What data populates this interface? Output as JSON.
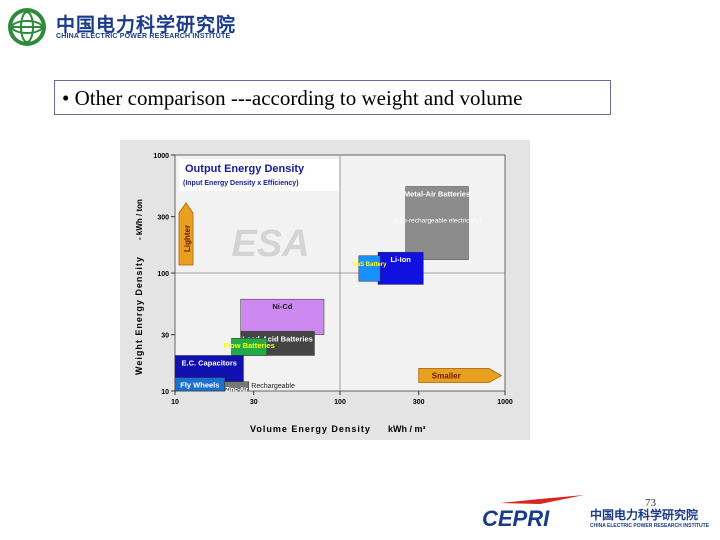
{
  "header": {
    "org_name_cn": "中国电力科学研究院",
    "org_name_en": "CHINA ELECTRIC POWER RESEARCH INSTITUTE"
  },
  "slide": {
    "title": "• Other comparison ---according to weight and volume",
    "page_number": "73"
  },
  "footer": {
    "brand": "CEPRI",
    "org_name_cn": "中国电力科学研究院",
    "org_name_en": "CHINA ELECTRIC POWER RESEARCH INSTITUTE"
  },
  "colors": {
    "brand_blue": "#1a3a8a",
    "brand_red": "#d8261c",
    "header_green": "#2e8b3a"
  },
  "chart_data": {
    "type": "scatter",
    "xlabel": "Volume Energy Density",
    "xunit": "kWh / m³",
    "ylabel": "Weight Energy Density",
    "yunit": "- kWh / ton",
    "xscale": "log",
    "yscale": "log",
    "xlim": [
      10,
      1000
    ],
    "ylim": [
      10,
      1000
    ],
    "xticks": [
      10,
      30,
      100,
      300,
      1000
    ],
    "yticks": [
      10,
      30,
      100,
      300,
      1000
    ],
    "xtick_labels": [
      "10",
      "30",
      "100",
      "300",
      "1000"
    ],
    "ytick_labels": [
      "10",
      "30",
      "100",
      "300",
      "1000"
    ],
    "watermark": "ESA",
    "annotations": {
      "title": "Output Energy Density",
      "subtitle": "(Input Energy Density x Efficiency)",
      "lighter": "Lighter",
      "smaller": "Smaller",
      "rechargeable": "Rechargeable"
    },
    "regions": [
      {
        "label": "Metal-Air Batteries",
        "note": "(Non-rechargeable electrically)",
        "x": [
          250,
          600
        ],
        "y": [
          130,
          540
        ],
        "color": "#8c8c8c"
      },
      {
        "label": "Li-Ion",
        "x": [
          170,
          320
        ],
        "y": [
          80,
          150
        ],
        "color": "#1010e0"
      },
      {
        "label": "NaS Battery",
        "x": [
          130,
          175
        ],
        "y": [
          85,
          140
        ],
        "color": "#1890ff"
      },
      {
        "label": "Ni-Cd",
        "x": [
          25,
          80
        ],
        "y": [
          30,
          60
        ],
        "color": "#cc88ee"
      },
      {
        "label": "Lead-Acid Batteries",
        "x": [
          25,
          70
        ],
        "y": [
          20,
          32
        ],
        "color": "#444444"
      },
      {
        "label": "Flow Batteries",
        "x": [
          22,
          36
        ],
        "y": [
          20,
          28
        ],
        "color": "#22aa44"
      },
      {
        "label": "E.C. Capacitors",
        "x": [
          10,
          26
        ],
        "y": [
          12,
          20
        ],
        "color": "#1010b0"
      },
      {
        "label": "Fly Wheels",
        "x": [
          10,
          20
        ],
        "y": [
          10,
          13
        ],
        "color": "#1c6fd0"
      },
      {
        "label": "Zinc-Air",
        "x": [
          20,
          28
        ],
        "y": [
          10.2,
          12
        ],
        "color": "#777777"
      }
    ]
  }
}
